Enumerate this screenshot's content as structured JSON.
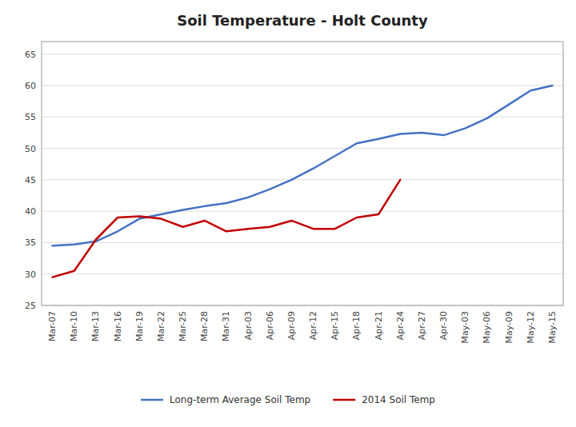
{
  "chart_data": {
    "type": "line",
    "title": "Soil Temperature - Holt County",
    "categories": [
      "Mar-07",
      "Mar-10",
      "Mar-13",
      "Mar-16",
      "Mar-19",
      "Mar-22",
      "Mar-25",
      "Mar-28",
      "Mar-31",
      "Apr-03",
      "Apr-06",
      "Apr-09",
      "Apr-12",
      "Apr-15",
      "Apr-18",
      "Apr-21",
      "Apr-24",
      "Apr-27",
      "Apr-30",
      "May-03",
      "May-06",
      "May-09",
      "May-12",
      "May-15"
    ],
    "series": [
      {
        "name": "Long-term Average Soil Temp",
        "color": "#4472c4",
        "values": [
          34.5,
          34.7,
          35.2,
          36.8,
          38.8,
          39.5,
          40.2,
          40.8,
          41.3,
          42.2,
          43.5,
          45.0,
          46.8,
          48.8,
          50.8,
          51.5,
          52.3,
          52.5,
          52.1,
          53.2,
          54.8,
          57.0,
          59.2,
          60.0
        ]
      },
      {
        "name": "2014 Soil Temp",
        "color": "#c00000",
        "values": [
          29.5,
          30.5,
          35.5,
          39.0,
          39.2,
          38.8,
          37.5,
          38.5,
          36.8,
          37.2,
          37.5,
          38.5,
          37.2,
          37.2,
          39.0,
          39.5,
          45.0,
          null,
          null,
          null,
          null,
          null,
          null,
          null
        ]
      }
    ],
    "ylim": [
      25,
      67
    ],
    "yticks": [
      25,
      30,
      35,
      40,
      45,
      50,
      55,
      60,
      65
    ],
    "grid": true,
    "legend": "bottom"
  }
}
